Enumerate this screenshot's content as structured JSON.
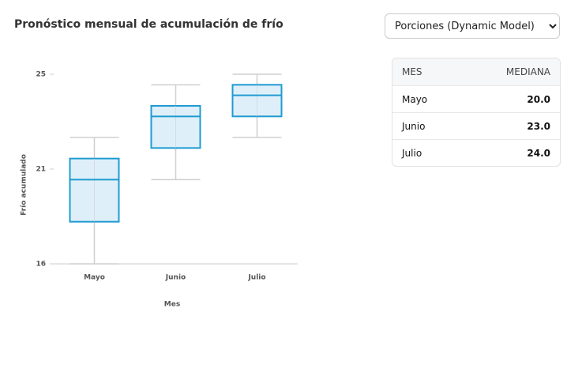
{
  "header": {
    "title": "Pronóstico mensual de acumulación de frío",
    "select": "Porciones (Dynamic Model)"
  },
  "table": {
    "columns": [
      "MES",
      "MEDIANA"
    ],
    "rows": [
      [
        "Mayo",
        "20.0"
      ],
      [
        "Junio",
        "23.0"
      ],
      [
        "Julio",
        "24.0"
      ]
    ]
  },
  "chart_data": {
    "type": "box",
    "x_label": "Mes",
    "y_label": "Frío acumulado",
    "categories": [
      "Mayo",
      "Junio",
      "Julio"
    ],
    "boxes": [
      {
        "min": 16,
        "q1": 18,
        "median": 20,
        "q3": 21,
        "max": 22
      },
      {
        "min": 20,
        "q1": 21.5,
        "median": 23,
        "q3": 23.5,
        "max": 24.5
      },
      {
        "min": 22,
        "q1": 23,
        "median": 24,
        "q3": 24.5,
        "max": 25
      }
    ],
    "color": "#1f9bd1",
    "fill": "#d8ecf8",
    "ylim": [
      16,
      25
    ],
    "yticks": [
      16,
      {
        "value": 20.5,
        "label": "21"
      },
      25
    ]
  }
}
